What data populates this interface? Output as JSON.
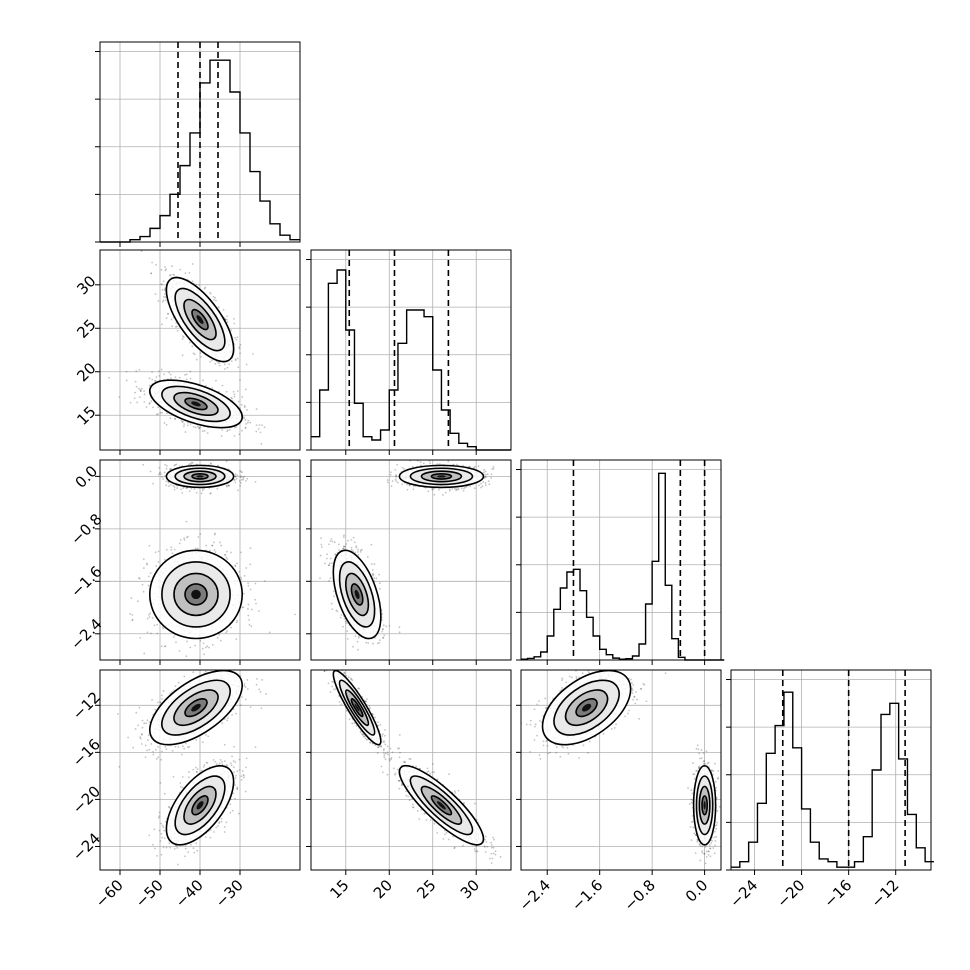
{
  "chart_data": {
    "type": "corner",
    "grid": true,
    "params": [
      {
        "range": [
          -65,
          -15
        ],
        "ticks": [
          -60,
          -50,
          -40,
          -30
        ],
        "tick_labels": [
          "−60",
          "−50",
          "−40",
          "−30"
        ],
        "quantiles": [
          -45.5,
          -40.0,
          -35.5
        ],
        "hist": {
          "edges_start": -65,
          "bin_width": 2.5,
          "counts": [
            0,
            0,
            0,
            0.5,
            1.2,
            3,
            5.8,
            10.5,
            16.8,
            24,
            35,
            40,
            40,
            33,
            24,
            15.5,
            9,
            4,
            1.5,
            0.5
          ]
        },
        "hist_ymax": 44
      },
      {
        "range": [
          11,
          34
        ],
        "ticks": [
          15,
          20,
          25,
          30
        ],
        "tick_labels": [
          "15",
          "20",
          "25",
          "30"
        ],
        "quantiles": [
          15.4,
          20.6,
          26.8
        ],
        "hist": {
          "edges_start": 11,
          "bin_width": 1.0,
          "counts": [
            2,
            9,
            25,
            27,
            18,
            7,
            2,
            1.5,
            3,
            9,
            16,
            21,
            21,
            20,
            12,
            6,
            2.5,
            1,
            0.5,
            0,
            0,
            0,
            0
          ]
        },
        "hist_ymax": 30
      },
      {
        "range": [
          -2.8,
          0.25
        ],
        "ticks": [
          -2.4,
          -1.6,
          -0.8,
          0.0
        ],
        "tick_labels": [
          "−2.4",
          "−1.6",
          "−0.8",
          "0.0"
        ],
        "quantiles": [
          -2.0,
          -0.37,
          0.0
        ],
        "hist": {
          "edges_start": -2.8,
          "bin_width": 0.1,
          "counts": [
            0.3,
            0.6,
            1.2,
            3,
            9,
            19,
            27,
            33,
            34,
            26,
            16,
            9,
            4,
            2,
            0.7,
            0.3,
            0.5,
            1.5,
            6,
            21,
            37,
            70,
            28,
            8,
            1,
            0,
            0,
            0,
            0,
            0,
            0
          ]
        },
        "hist_ymax": 75
      },
      {
        "range": [
          -26,
          -9
        ],
        "ticks": [
          -24,
          -20,
          -16,
          -12
        ],
        "tick_labels": [
          "−24",
          "−20",
          "−16",
          "−12"
        ],
        "quantiles": [
          -21.6,
          -16.0,
          -11.2
        ],
        "hist": {
          "edges_start": -26,
          "bin_width": 0.75,
          "counts": [
            0.5,
            1.5,
            5,
            12,
            21,
            26,
            32,
            22,
            11,
            5,
            2,
            1.5,
            0.5,
            0.5,
            1.5,
            6,
            18,
            28,
            30,
            20,
            10,
            4,
            1.5
          ]
        },
        "hist_ymax": 36
      }
    ],
    "modes": [
      {
        "mean": [
          -40,
          26,
          0.0,
          -20.5
        ],
        "sd": [
          4.0,
          2.3,
          0.08,
          1.6
        ]
      },
      {
        "mean": [
          -41,
          16.3,
          -1.8,
          -12.2
        ],
        "sd": [
          5.5,
          1.3,
          0.32,
          1.5
        ]
      }
    ],
    "pair_correlations": {
      "1,0": [
        -0.7,
        -0.55
      ],
      "2,0": [
        0.0,
        0.0
      ],
      "2,1": [
        0.0,
        -0.5
      ],
      "3,0": [
        0.6,
        0.6
      ],
      "3,1": [
        -0.85,
        -0.9
      ],
      "3,2": [
        0.0,
        0.5
      ]
    }
  }
}
